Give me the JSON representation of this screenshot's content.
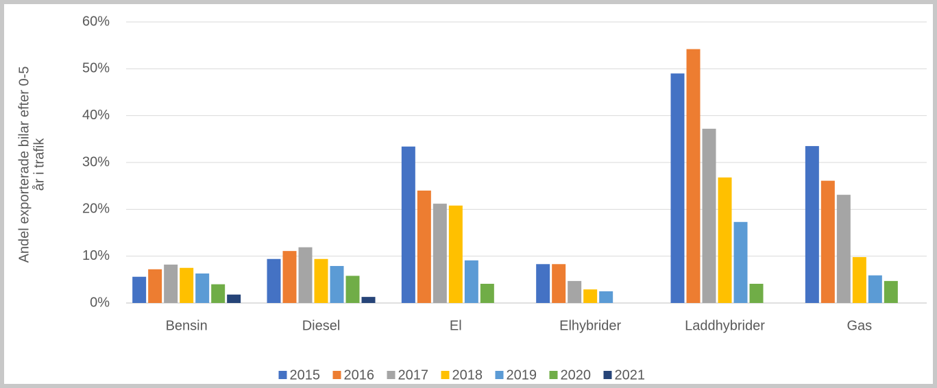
{
  "chart_data": {
    "type": "bar",
    "ylabel": [
      "Andel exporterade bilar efter 0-5",
      "år i trafik"
    ],
    "categories": [
      "Bensin",
      "Diesel",
      "El",
      "Elhybrider",
      "Laddhybrider",
      "Gas"
    ],
    "series": [
      {
        "name": "2015",
        "color": "#4472c4",
        "values": [
          5.6,
          9.4,
          33.4,
          8.3,
          49.0,
          33.5
        ]
      },
      {
        "name": "2016",
        "color": "#ed7d31",
        "values": [
          7.2,
          11.1,
          24.0,
          8.3,
          54.2,
          26.1
        ]
      },
      {
        "name": "2017",
        "color": "#a5a5a5",
        "values": [
          8.2,
          11.9,
          21.2,
          4.7,
          37.2,
          23.1
        ]
      },
      {
        "name": "2018",
        "color": "#ffc000",
        "values": [
          7.5,
          9.4,
          20.8,
          2.9,
          26.8,
          9.8
        ]
      },
      {
        "name": "2019",
        "color": "#5b9bd5",
        "values": [
          6.3,
          7.9,
          9.1,
          2.5,
          17.3,
          5.9
        ]
      },
      {
        "name": "2020",
        "color": "#70ad47",
        "values": [
          4.0,
          5.8,
          4.1,
          null,
          4.1,
          4.7
        ]
      },
      {
        "name": "2021",
        "color": "#264478",
        "values": [
          1.8,
          1.3,
          null,
          null,
          null,
          null
        ]
      }
    ],
    "ylim": [
      0,
      60
    ],
    "yticks": [
      {
        "value": 0,
        "label": "0%"
      },
      {
        "value": 10,
        "label": "10%"
      },
      {
        "value": 20,
        "label": "20%"
      },
      {
        "value": 30,
        "label": "30%"
      },
      {
        "value": 40,
        "label": "40%"
      },
      {
        "value": 50,
        "label": "50%"
      },
      {
        "value": 60,
        "label": "60%"
      }
    ],
    "grid": true,
    "legend": "bottom"
  }
}
